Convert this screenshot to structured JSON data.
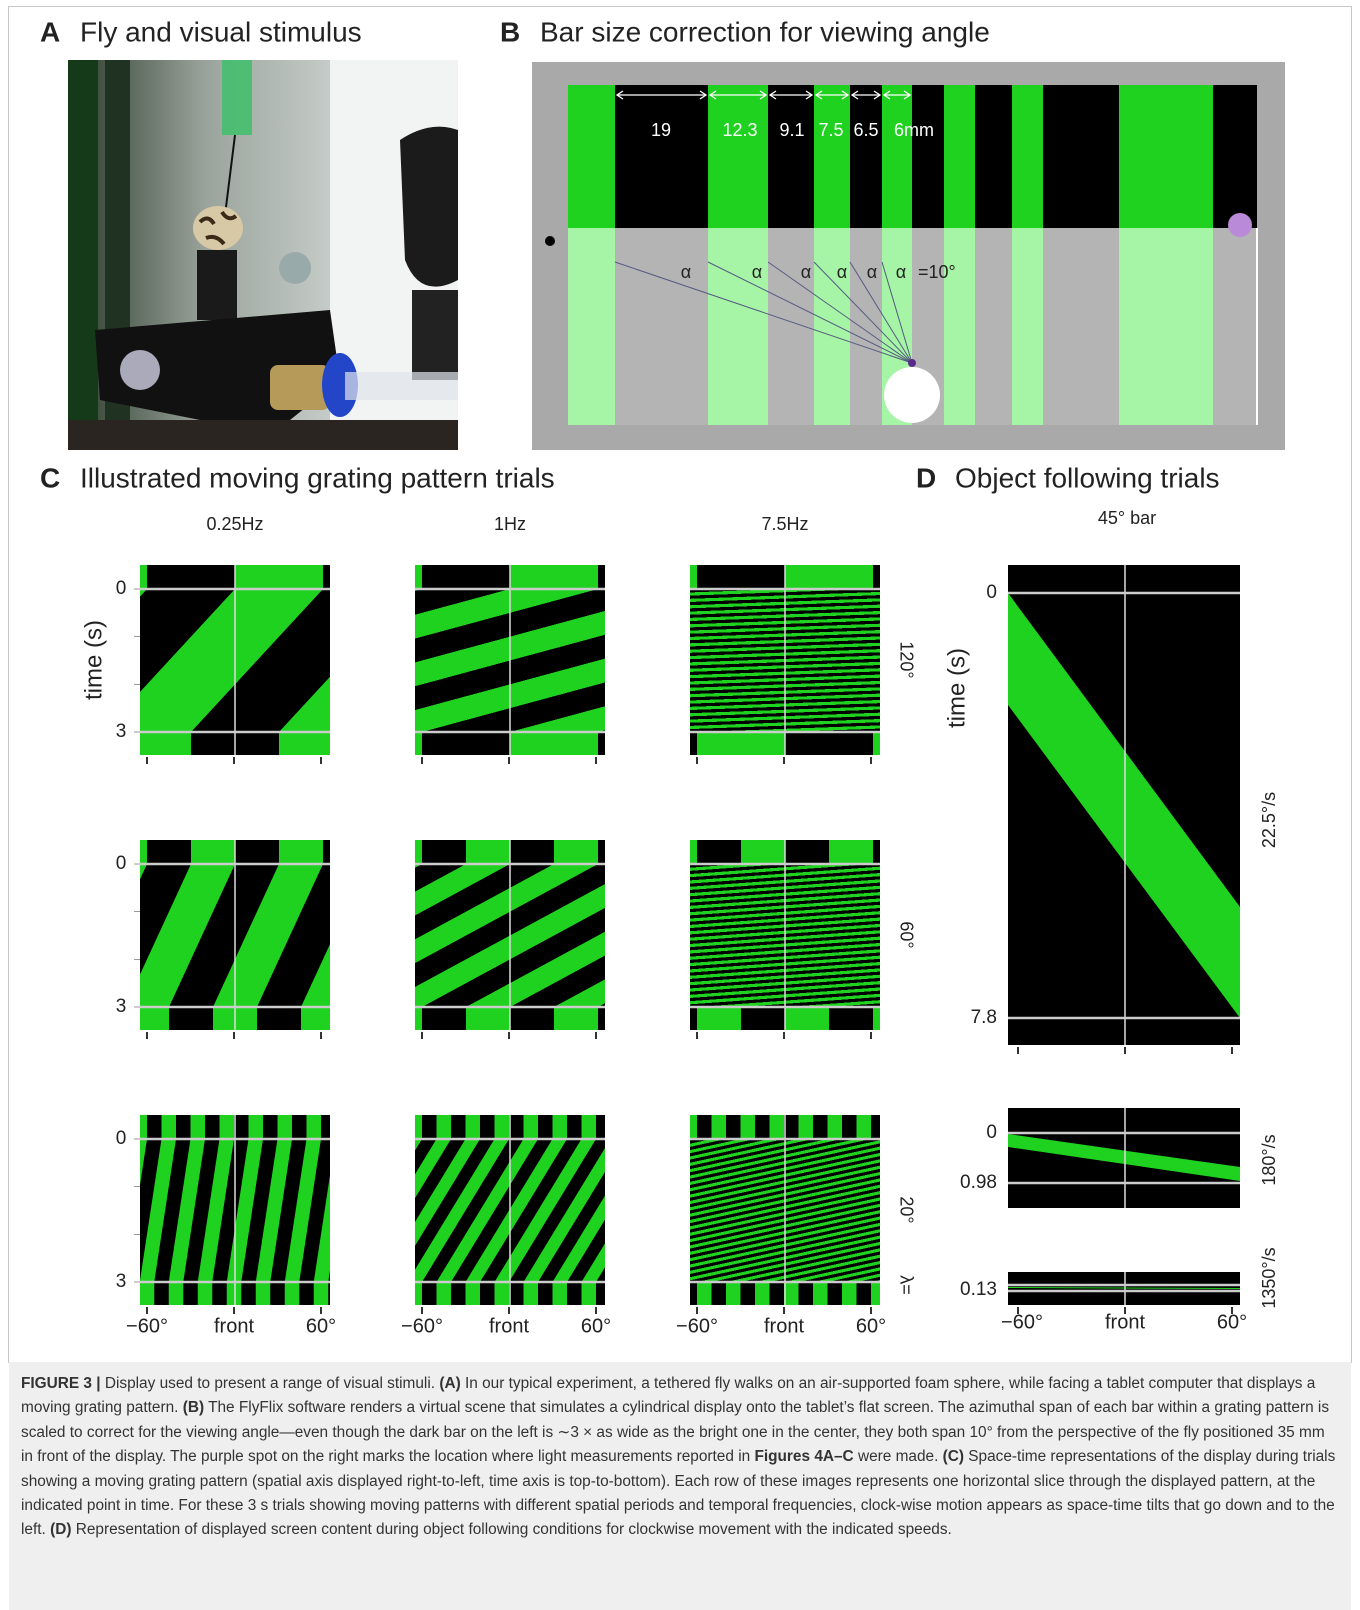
{
  "panel_a": {
    "letter": "A",
    "title": "Fly and visual stimulus"
  },
  "panel_b": {
    "letter": "B",
    "title": "Bar size correction for viewing angle",
    "widths": [
      "19",
      "12.3",
      "9.1",
      "7.5",
      "6.5",
      "6mm"
    ],
    "angles": [
      "α",
      "α",
      "α",
      "α",
      "α",
      "α"
    ],
    "angle_value": "=10°"
  },
  "panel_c": {
    "letter": "C",
    "title": "Illustrated moving grating pattern trials",
    "frequencies": [
      "0.25Hz",
      "1Hz",
      "7.5Hz"
    ],
    "y_label": "time (s)",
    "y_ticks": [
      "0",
      "3"
    ],
    "x_ticks": [
      "−60°",
      "front",
      "60°"
    ],
    "wavelengths": [
      "120°",
      "60°",
      "20°"
    ],
    "wavelength_label": "λ="
  },
  "panel_d": {
    "letter": "D",
    "title": "Object following trials",
    "subtitle": "45° bar",
    "y_label": "time (s)",
    "plots": [
      {
        "y_ticks": [
          "0",
          "7.8"
        ],
        "speed": "22.5°/s"
      },
      {
        "y_ticks": [
          "0",
          "0.98"
        ],
        "speed": "180°/s"
      },
      {
        "y_ticks": [
          "0.13"
        ],
        "speed": "1350°/s"
      }
    ],
    "x_ticks": [
      "−60°",
      "front",
      "60°"
    ]
  },
  "caption": {
    "runs": [
      {
        "text": "FIGURE 3 |",
        "bold": true
      },
      {
        "text": " Display used to present a range of visual stimuli. ",
        "bold": false
      },
      {
        "text": "(A)",
        "bold": true
      },
      {
        "text": " In our typical experiment, a tethered fly walks on an air-supported foam sphere, while facing a tablet computer that displays a moving grating pattern. ",
        "bold": false
      },
      {
        "text": "(B)",
        "bold": true
      },
      {
        "text": " The FlyFlix software renders a virtual scene that simulates a cylindrical display onto the tablet’s flat screen. The azimuthal span of each bar within a grating pattern is scaled to correct for the viewing angle—even though the dark bar on the left is ∼3 × as wide as the bright one in the center, they both span 10° from the perspective of the fly positioned 35 mm in front of the display. The purple spot on the right marks the location where light measurements reported in ",
        "bold": false
      },
      {
        "text": "Figures 4A–C",
        "bold": true
      },
      {
        "text": " were made. ",
        "bold": false
      },
      {
        "text": "(C)",
        "bold": true
      },
      {
        "text": " Space-time representations of the display during trials showing a moving grating pattern (spatial axis displayed right-to-left, time axis is top-to-bottom). Each row of these images represents one horizontal slice through the displayed pattern, at the indicated point in time. For these 3 s trials showing moving patterns with different spatial periods and temporal frequencies, clock-wise motion appears as space-time tilts that go down and to the left. ",
        "bold": false
      },
      {
        "text": "(D)",
        "bold": true
      },
      {
        "text": " Representation of displayed screen content during object following conditions for clockwise movement with the indicated speeds.",
        "bold": false
      }
    ]
  }
}
